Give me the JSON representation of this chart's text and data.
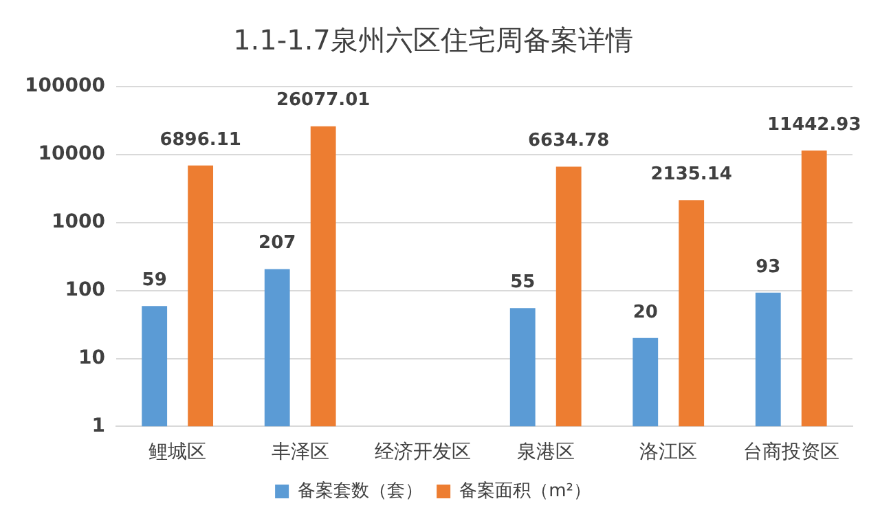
{
  "chart_data": {
    "type": "bar",
    "title": "1.1-1.7泉州六区住宅周备案详情",
    "categories": [
      "鲤城区",
      "丰泽区",
      "经济开发区",
      "泉港区",
      "洛江区",
      "台商投资区"
    ],
    "series": [
      {
        "name": "备案套数（套）",
        "color": "#5b9bd5",
        "values": [
          59,
          207,
          null,
          55,
          20,
          93
        ]
      },
      {
        "name": "备案面积（m²）",
        "color": "#ed7d31",
        "values": [
          6896.11,
          26077.01,
          null,
          6634.78,
          2135.14,
          11442.93
        ]
      }
    ],
    "log": "y",
    "ylim": [
      1,
      100000
    ],
    "yticks": [
      1,
      10,
      100,
      1000,
      10000,
      100000
    ],
    "grid": "y",
    "legend": "bottom",
    "data_labels": true
  }
}
